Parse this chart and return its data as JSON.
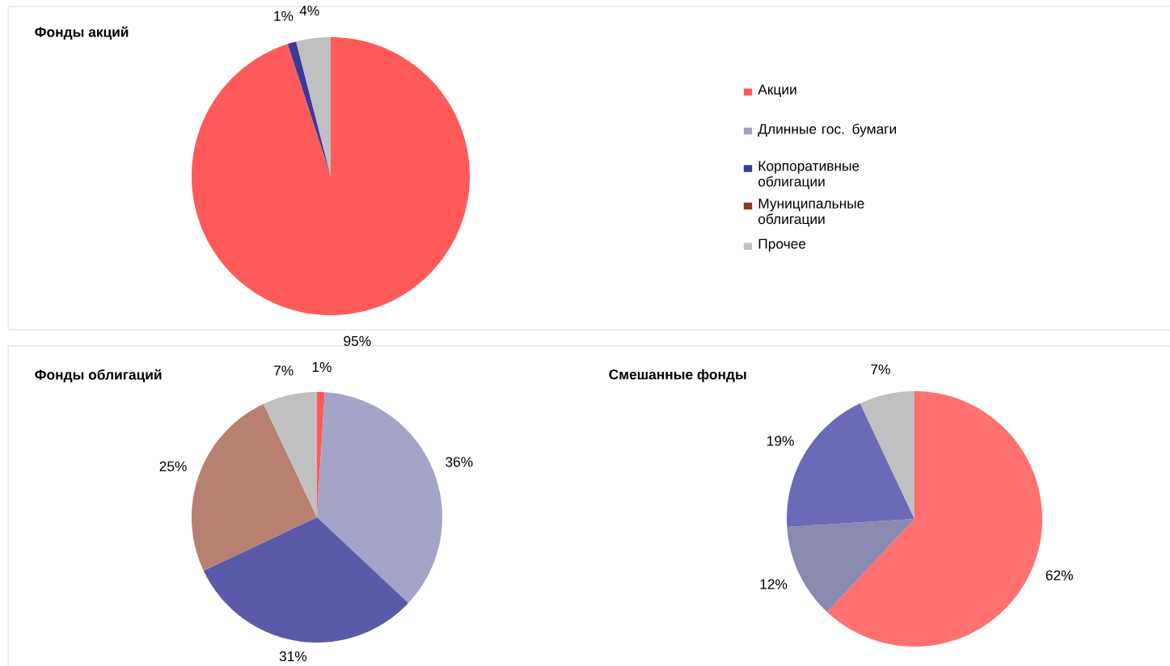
{
  "chart_data": [
    {
      "type": "pie",
      "title": "Фонды акций",
      "categories": [
        "Акции",
        "Длинные гос. бумаги",
        "Корпоративные облигации",
        "Муниципальные облигации",
        "Прочее"
      ],
      "values": [
        95,
        0,
        1,
        0,
        4
      ],
      "value_labels": [
        "95%",
        null,
        "1%",
        null,
        "4%"
      ],
      "colors": [
        "#ff5a5a",
        "#a4a4c8",
        "#3a3a98",
        "#8b3a1e",
        "#c0c0c0"
      ],
      "legend": "right"
    },
    {
      "type": "pie",
      "title": "Фонды облигаций",
      "categories": [
        null,
        null,
        null,
        null,
        null
      ],
      "values": [
        1,
        36,
        31,
        25,
        7
      ],
      "value_labels": [
        "1%",
        "36%",
        "31%",
        "25%",
        "7%"
      ],
      "colors": [
        "#ff5a5a",
        "#a4a4c8",
        "#5a5aa8",
        "#b88070",
        "#c0c0c0"
      ]
    },
    {
      "type": "pie",
      "title": "Смешанные фонды",
      "categories": [
        null,
        null,
        null,
        null,
        null
      ],
      "values": [
        62,
        12,
        19,
        0,
        7
      ],
      "value_labels": [
        "62%",
        "12%",
        "19%",
        null,
        "7%"
      ],
      "colors": [
        "#ff7070",
        "#8a8ab0",
        "#6a6ab8",
        "#8b3a1e",
        "#c0c0c0"
      ]
    }
  ]
}
